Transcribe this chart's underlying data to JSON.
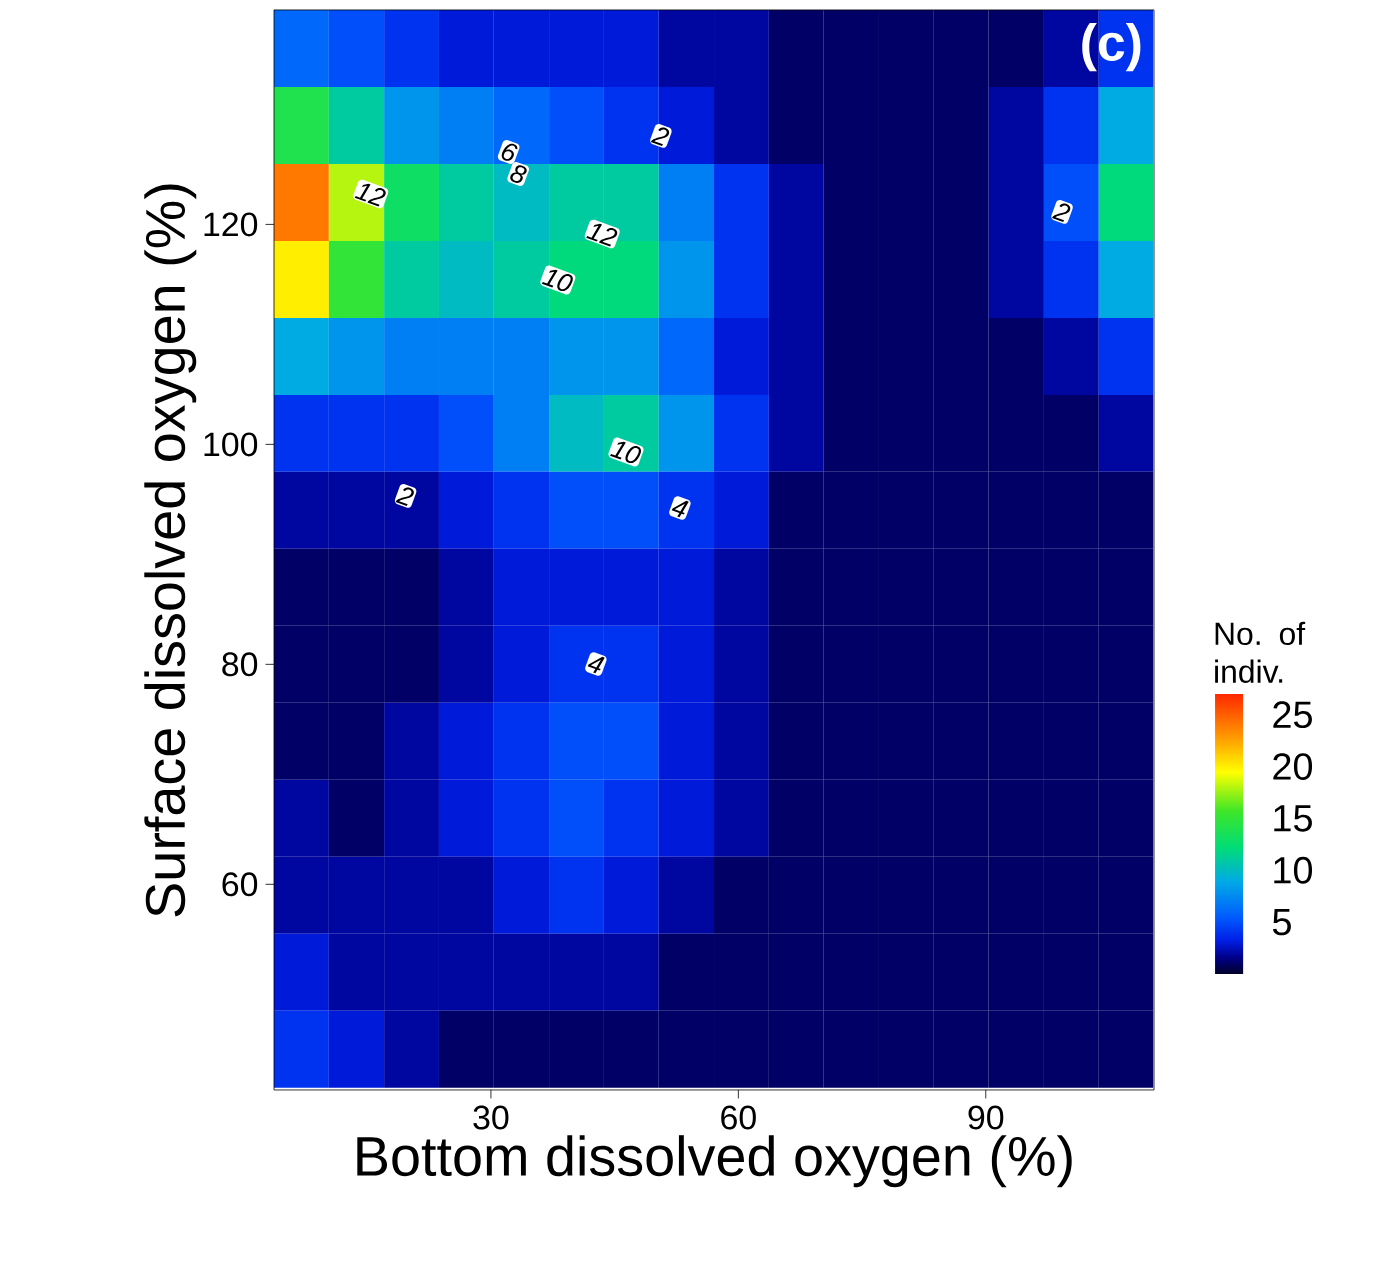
{
  "chart_data": {
    "type": "heatmap",
    "xlabel": "Bottom dissolved oxygen (%)",
    "ylabel": "Surface dissolved oxygen (%)",
    "clabel": "No. of indiv.",
    "x": [
      7.0,
      13.7,
      20.4,
      27.0,
      33.7,
      40.4,
      47.0,
      53.7,
      60.4,
      67.0,
      73.7,
      80.4,
      87.0,
      93.7,
      100.4,
      107.0
    ],
    "y": [
      136,
      129,
      122,
      115,
      108,
      101,
      94,
      87,
      80,
      73,
      66,
      59,
      52,
      45
    ],
    "xlim": [
      3.7,
      110.4
    ],
    "ylim": [
      41.3,
      139.5
    ],
    "xticks": [
      30,
      60,
      90
    ],
    "yticks": [
      60,
      80,
      100,
      120
    ],
    "clim": [
      0,
      27
    ],
    "cticks": [
      5,
      10,
      15,
      20,
      25
    ],
    "cells": [
      [
        6,
        5,
        4,
        3,
        3,
        3,
        3,
        2,
        2,
        1,
        1,
        1,
        1,
        1,
        2,
        4
      ],
      [
        14,
        11,
        8,
        7,
        6,
        5,
        4,
        3,
        2,
        1,
        1,
        1,
        1,
        2,
        4,
        9
      ],
      [
        24,
        18,
        13,
        11,
        10,
        11,
        11,
        7,
        4,
        2,
        1,
        1,
        1,
        2,
        5,
        12
      ],
      [
        20,
        15,
        11,
        10,
        11,
        12,
        12,
        8,
        4,
        2,
        1,
        1,
        1,
        2,
        4,
        9
      ],
      [
        9,
        8,
        7,
        7,
        7,
        8,
        8,
        6,
        3,
        2,
        1,
        1,
        1,
        1,
        2,
        4
      ],
      [
        4,
        4,
        4,
        5,
        7,
        10,
        11,
        8,
        4,
        2,
        1,
        1,
        1,
        1,
        1,
        2
      ],
      [
        2,
        2,
        2,
        3,
        4,
        5,
        5,
        4,
        3,
        1,
        1,
        1,
        1,
        1,
        1,
        1
      ],
      [
        1,
        1,
        1,
        2,
        3,
        3,
        3,
        3,
        2,
        1,
        1,
        1,
        1,
        1,
        1,
        1
      ],
      [
        1,
        1,
        1,
        2,
        3,
        4,
        4,
        3,
        2,
        1,
        1,
        1,
        1,
        1,
        1,
        1
      ],
      [
        1,
        1,
        2,
        3,
        4,
        5,
        5,
        3,
        2,
        1,
        1,
        1,
        1,
        1,
        1,
        1
      ],
      [
        2,
        1,
        2,
        3,
        4,
        5,
        4,
        3,
        2,
        1,
        1,
        1,
        1,
        1,
        1,
        1
      ],
      [
        2,
        2,
        2,
        2,
        3,
        4,
        3,
        2,
        1,
        1,
        1,
        1,
        1,
        1,
        1,
        1
      ],
      [
        3,
        2,
        2,
        2,
        2,
        2,
        2,
        1,
        1,
        1,
        1,
        1,
        1,
        1,
        1,
        1
      ],
      [
        4,
        3,
        2,
        1,
        1,
        1,
        1,
        1,
        1,
        1,
        1,
        1,
        1,
        1,
        1,
        1
      ]
    ],
    "annotations": [
      "(c)",
      "2",
      "6",
      "8",
      "12",
      "12",
      "10",
      "2",
      "10",
      "2",
      "4",
      "4"
    ]
  }
}
